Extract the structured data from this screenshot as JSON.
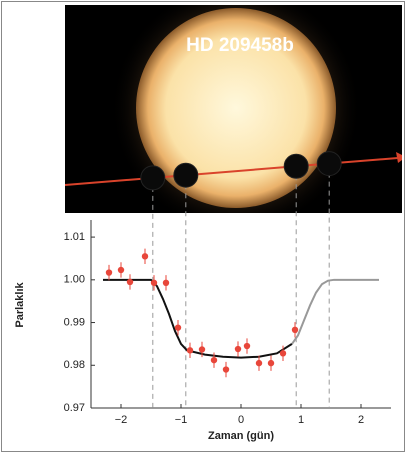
{
  "chart_data": {
    "type": "transit",
    "title": "HD 209458b",
    "ylabel": "Parlaklık",
    "xlabel": "Zaman (gün)",
    "xlim": [
      -2.5,
      2.5
    ],
    "ylim": [
      0.97,
      1.014
    ],
    "xticks": [
      {
        "value": -2,
        "label": "−2"
      },
      {
        "value": -1,
        "label": "−1"
      },
      0,
      1,
      2
    ],
    "yticks": [
      1.01,
      {
        "value": 1.0,
        "label": "1.00"
      },
      0.99,
      0.98,
      0.97
    ],
    "contact_times": [
      -1.47,
      -0.92,
      0.92,
      1.47
    ],
    "points": {
      "color": "#e8463a",
      "x": [
        -2.2,
        -2.0,
        -1.85,
        -1.6,
        -1.45,
        -1.25,
        -1.05,
        -0.85,
        -0.65,
        -0.45,
        -0.25,
        -0.05,
        0.1,
        0.3,
        0.5,
        0.7,
        0.9
      ],
      "y": [
        1.0017,
        1.0023,
        0.9995,
        1.0055,
        0.9993,
        0.9993,
        0.9888,
        0.9835,
        0.9837,
        0.9812,
        0.979,
        0.9838,
        0.9845,
        0.9805,
        0.9805,
        0.9828,
        0.9883
      ],
      "errors": [
        0.0018,
        0.0018,
        0.0018,
        0.0018,
        0.0018,
        0.0018,
        0.0018,
        0.0018,
        0.0018,
        0.0018,
        0.0018,
        0.0018,
        0.0018,
        0.0018,
        0.0018,
        0.0018,
        0.0018
      ]
    },
    "curves": [
      {
        "color": "#111111",
        "x": [
          -2.3,
          -1.5,
          -1.4,
          -1.3,
          -1.2,
          -1.1,
          -1.0,
          -0.9,
          -0.6,
          -0.3,
          0,
          0.3,
          0.6,
          0.85
        ],
        "y": [
          1.0,
          1.0,
          0.9985,
          0.9955,
          0.992,
          0.988,
          0.985,
          0.9835,
          0.9825,
          0.982,
          0.9818,
          0.982,
          0.9828,
          0.985
        ]
      },
      {
        "color": "#999999",
        "x": [
          0.85,
          0.95,
          1.05,
          1.15,
          1.25,
          1.35,
          1.45,
          1.55,
          2.3
        ],
        "y": [
          0.985,
          0.987,
          0.9905,
          0.994,
          0.997,
          0.999,
          0.9998,
          1.0,
          1.0
        ]
      }
    ]
  }
}
